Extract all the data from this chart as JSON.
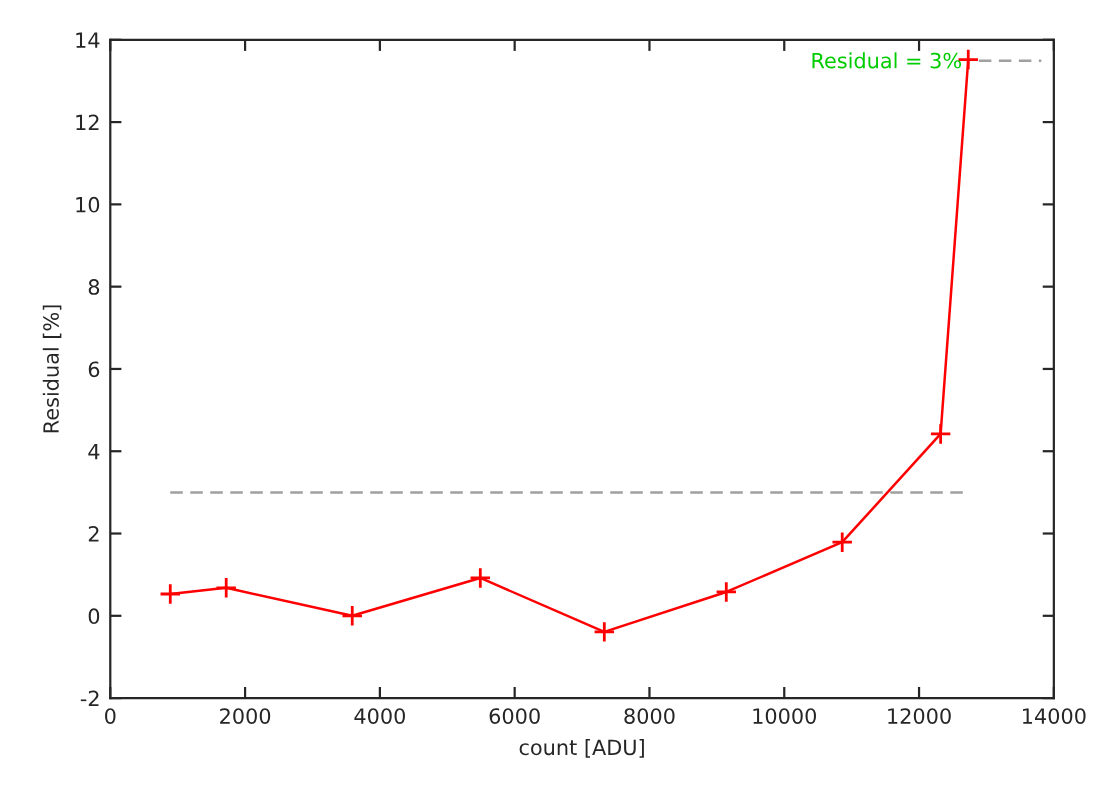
{
  "chart_data": {
    "type": "line",
    "xlabel": "count [ADU]",
    "ylabel": "Residual [%]",
    "series": [
      {
        "color": "#ff0000",
        "marker": "cross",
        "line_style": "solid",
        "x": [
          890,
          1720,
          3590,
          5490,
          7330,
          9140,
          10860,
          12320,
          12730
        ],
        "values": [
          0.53,
          0.68,
          0.0,
          0.92,
          -0.39,
          0.58,
          1.79,
          4.42,
          13.52
        ]
      },
      {
        "name": "Residual = 3%",
        "color": "#a0a0a0",
        "marker": "none",
        "line_style": "dashed",
        "x": [
          890,
          12730
        ],
        "values": [
          3,
          3
        ]
      }
    ],
    "xlim": [
      0,
      14000
    ],
    "xticks": [
      0,
      2000,
      4000,
      6000,
      8000,
      10000,
      12000,
      14000
    ],
    "ylim": [
      -2,
      14
    ],
    "yticks": [
      -2,
      0,
      2,
      4,
      6,
      8,
      10,
      12,
      14
    ],
    "grid": false,
    "legend": "top right"
  }
}
